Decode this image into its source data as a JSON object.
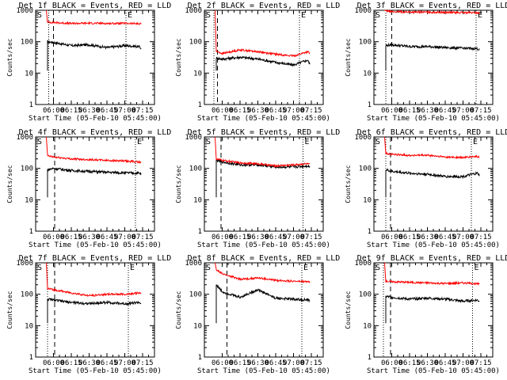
{
  "ylabel": "Counts/sec",
  "xlabel": "Start Time (05-Feb-10 05:45:00)",
  "xticks": [
    "06:00",
    "06:15",
    "06:30",
    "06:45",
    "07:00",
    "07:15"
  ],
  "yticks": [
    "1",
    "10",
    "100",
    "1000"
  ],
  "marker_start": "S",
  "marker_end": "E",
  "colors": {
    "events": "#000000",
    "lld": "#ff0000"
  },
  "chart_data": [
    {
      "type": "line",
      "title": "Det 1f BLACK = Events, RED = LLD",
      "x_minutes_since_0545": [
        10,
        15,
        30,
        45,
        60,
        75,
        87,
        89
      ],
      "series": [
        {
          "name": "Events",
          "values": [
            100,
            95,
            75,
            80,
            65,
            75,
            70,
            60
          ]
        },
        {
          "name": "LLD",
          "values": [
            420,
            410,
            380,
            390,
            380,
            385,
            375,
            370
          ]
        }
      ],
      "ylim": [
        1,
        1000
      ],
      "yscale": "log"
    },
    {
      "type": "line",
      "title": "Det 2f BLACK = Events, RED = LLD",
      "x_minutes_since_0545": [
        10,
        15,
        30,
        45,
        60,
        75,
        87,
        89
      ],
      "series": [
        {
          "name": "Events",
          "values": [
            30,
            28,
            32,
            28,
            22,
            18,
            26,
            18
          ]
        },
        {
          "name": "LLD",
          "values": [
            50,
            42,
            55,
            48,
            40,
            35,
            48,
            40
          ]
        }
      ],
      "ylim": [
        1,
        1000
      ],
      "yscale": "log"
    },
    {
      "type": "line",
      "title": "Det 3f BLACK = Events, RED = LLD",
      "x_minutes_since_0545": [
        10,
        15,
        30,
        45,
        60,
        75,
        87,
        89
      ],
      "series": [
        {
          "name": "Events",
          "values": [
            75,
            80,
            70,
            70,
            65,
            62,
            60,
            55
          ]
        },
        {
          "name": "LLD",
          "values": [
            950,
            900,
            880,
            870,
            860,
            840,
            830,
            800
          ]
        }
      ],
      "ylim": [
        1,
        1000
      ],
      "yscale": "log"
    },
    {
      "type": "line",
      "title": "Det 4f BLACK = Events, RED = LLD",
      "x_minutes_since_0545": [
        10,
        15,
        30,
        45,
        60,
        75,
        87,
        89
      ],
      "series": [
        {
          "name": "Events",
          "values": [
            90,
            100,
            85,
            80,
            75,
            72,
            70,
            65
          ]
        },
        {
          "name": "LLD",
          "values": [
            250,
            230,
            200,
            190,
            180,
            170,
            160,
            150
          ]
        }
      ],
      "ylim": [
        1,
        1000
      ],
      "yscale": "log"
    },
    {
      "type": "line",
      "title": "Det 5f BLACK = Events, RED = LLD",
      "x_minutes_since_0545": [
        10,
        15,
        30,
        45,
        60,
        75,
        87,
        89
      ],
      "series": [
        {
          "name": "Events",
          "values": [
            180,
            160,
            130,
            130,
            110,
            110,
            120,
            110
          ]
        },
        {
          "name": "LLD",
          "values": [
            200,
            180,
            150,
            140,
            120,
            130,
            140,
            130
          ]
        }
      ],
      "ylim": [
        1,
        1000
      ],
      "yscale": "log"
    },
    {
      "type": "line",
      "title": "Det 6f BLACK = Events, RED = LLD",
      "x_minutes_since_0545": [
        10,
        15,
        30,
        45,
        60,
        75,
        87,
        89
      ],
      "series": [
        {
          "name": "Events",
          "values": [
            90,
            80,
            70,
            65,
            55,
            55,
            70,
            60
          ]
        },
        {
          "name": "LLD",
          "values": [
            300,
            280,
            260,
            260,
            230,
            220,
            240,
            220
          ]
        }
      ],
      "ylim": [
        1,
        1000
      ],
      "yscale": "log"
    },
    {
      "type": "line",
      "title": "Det 7f BLACK = Events, RED = LLD",
      "x_minutes_since_0545": [
        10,
        15,
        30,
        45,
        60,
        75,
        87,
        89
      ],
      "series": [
        {
          "name": "Events",
          "values": [
            70,
            65,
            55,
            50,
            55,
            50,
            55,
            50
          ]
        },
        {
          "name": "LLD",
          "values": [
            150,
            140,
            110,
            90,
            100,
            100,
            110,
            100
          ]
        }
      ],
      "ylim": [
        1,
        1000
      ],
      "yscale": "log"
    },
    {
      "type": "line",
      "title": "Det 8f BLACK = Events, RED = LLD",
      "x_minutes_since_0545": [
        10,
        15,
        30,
        45,
        60,
        75,
        87,
        89
      ],
      "series": [
        {
          "name": "Events",
          "values": [
            200,
            120,
            80,
            140,
            75,
            70,
            65,
            60
          ]
        },
        {
          "name": "LLD",
          "values": [
            600,
            450,
            300,
            330,
            280,
            260,
            250,
            240
          ]
        }
      ],
      "ylim": [
        1,
        1000
      ],
      "yscale": "log"
    },
    {
      "type": "line",
      "title": "Det 9f BLACK = Events, RED = LLD",
      "x_minutes_since_0545": [
        10,
        15,
        30,
        45,
        60,
        75,
        87,
        89
      ],
      "series": [
        {
          "name": "Events",
          "values": [
            85,
            80,
            70,
            75,
            70,
            60,
            65,
            60
          ]
        },
        {
          "name": "LLD",
          "values": [
            260,
            250,
            240,
            230,
            220,
            230,
            215,
            210
          ]
        }
      ],
      "ylim": [
        1,
        1000
      ],
      "yscale": "log"
    }
  ]
}
